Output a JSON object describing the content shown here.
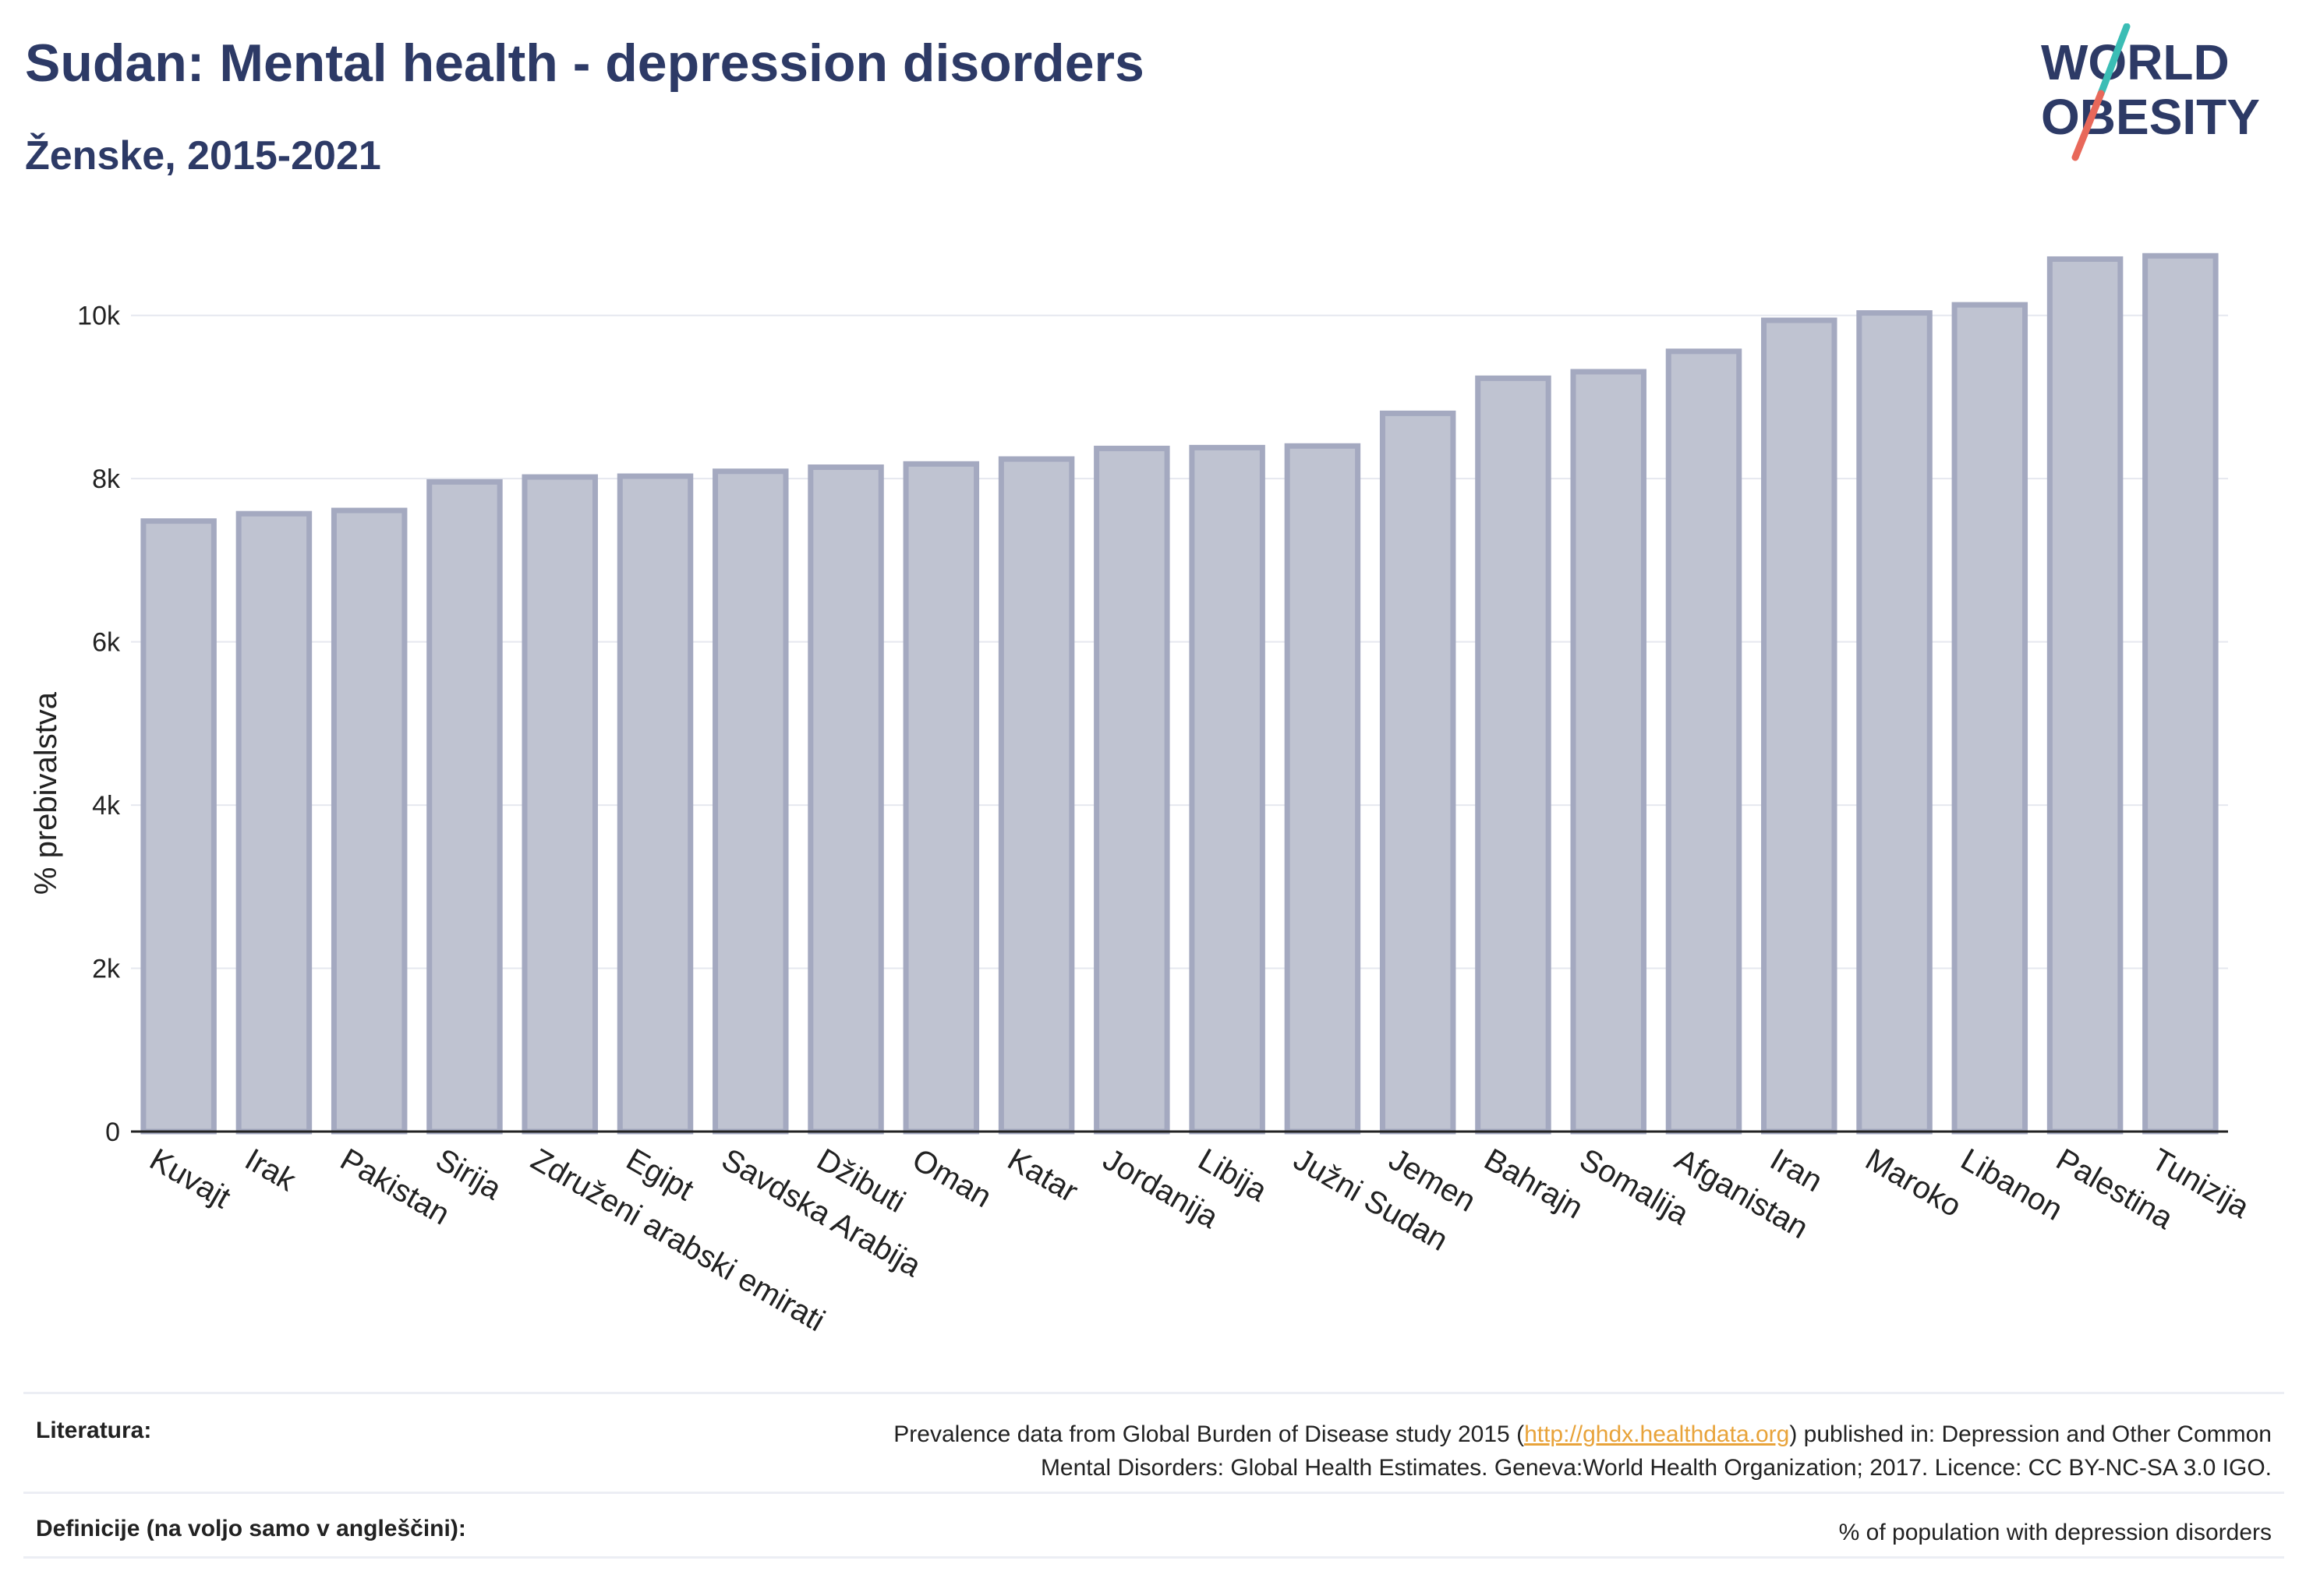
{
  "header": {
    "title": "Sudan: Mental health - depression disorders",
    "subtitle": "Ženske, 2015-2021"
  },
  "logo": {
    "line1": "WORLD",
    "line2": "OBESITY",
    "accent_teal": "#3bbdb5",
    "accent_coral": "#e8685a",
    "text_color": "#2d3a66"
  },
  "chart_data": {
    "type": "bar",
    "categories": [
      "Kuvajt",
      "Irak",
      "Pakistan",
      "Sirija",
      "Združeni arabski emirati",
      "Egipt",
      "Savdska Arabija",
      "Džibuti",
      "Oman",
      "Katar",
      "Jordanija",
      "Libija",
      "Južni Sudan",
      "Jemen",
      "Bahrajn",
      "Somalija",
      "Afganistan",
      "Iran",
      "Maroko",
      "Libanon",
      "Palestina",
      "Tunizija"
    ],
    "values": [
      7480,
      7570,
      7610,
      7960,
      8020,
      8030,
      8090,
      8140,
      8180,
      8240,
      8370,
      8380,
      8400,
      8800,
      9230,
      9310,
      9560,
      9940,
      10030,
      10130,
      10690,
      10730
    ],
    "ylabel": "% prebivalstva",
    "ylim": [
      0,
      11000
    ],
    "yticks": [
      0,
      2000,
      4000,
      6000,
      8000,
      10000
    ],
    "ytick_labels": [
      "0",
      "2k",
      "4k",
      "6k",
      "8k",
      "10k"
    ],
    "grid": true,
    "bar_fill": "#bfc3d1",
    "bar_stroke": "#a4a9c0"
  },
  "footer": {
    "sources_label": "Literatura:",
    "sources_text_before": "Prevalence data from Global Burden of Disease study 2015 (",
    "sources_link": "http://ghdx.healthdata.org",
    "sources_text_after": ") published in: Depression and Other Common",
    "sources_text_line2": "Mental Disorders: Global Health Estimates. Geneva:World Health Organization; 2017. Licence: CC BY-NC-SA 3.0 IGO.",
    "definitions_label": "Definicije (na voljo samo v angleščini):",
    "definitions_text": "% of population with depression disorders"
  }
}
